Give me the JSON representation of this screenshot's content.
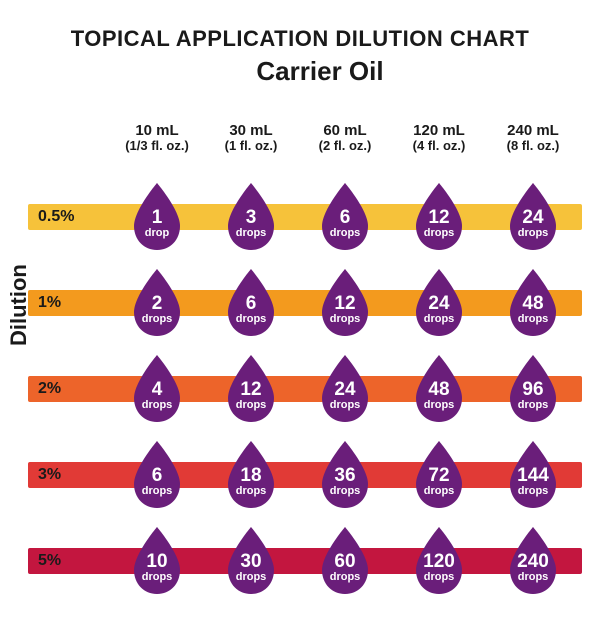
{
  "title": "TOPICAL APPLICATION DILUTION CHART",
  "title_fontsize": 22,
  "subtitle": "Carrier Oil",
  "subtitle_fontsize": 26,
  "y_axis_label": "Dilution",
  "y_axis_fontsize": 22,
  "text_color": "#1a1a1a",
  "drop_fill": "#6a1e7a",
  "drop_text_color": "#ffffff",
  "background_color": "#ffffff",
  "col_header_fontsize": 15,
  "col_subheader_fontsize": 13,
  "row_label_fontsize": 16,
  "drop_num_fontsize": 19,
  "drop_unit_fontsize": 11,
  "columns": [
    {
      "ml": "10 mL",
      "floz": "(1/3 fl. oz.)"
    },
    {
      "ml": "30 mL",
      "floz": "(1 fl. oz.)"
    },
    {
      "ml": "60 mL",
      "floz": "(2 fl. oz.)"
    },
    {
      "ml": "120 mL",
      "floz": "(4 fl. oz.)"
    },
    {
      "ml": "240 mL",
      "floz": "(8 fl. oz.)"
    }
  ],
  "rows": [
    {
      "label": "0.5%",
      "band_color": "#f6c23a",
      "drops": [
        {
          "n": "1",
          "u": "drop"
        },
        {
          "n": "3",
          "u": "drops"
        },
        {
          "n": "6",
          "u": "drops"
        },
        {
          "n": "12",
          "u": "drops"
        },
        {
          "n": "24",
          "u": "drops"
        }
      ]
    },
    {
      "label": "1%",
      "band_color": "#f39a1e",
      "drops": [
        {
          "n": "2",
          "u": "drops"
        },
        {
          "n": "6",
          "u": "drops"
        },
        {
          "n": "12",
          "u": "drops"
        },
        {
          "n": "24",
          "u": "drops"
        },
        {
          "n": "48",
          "u": "drops"
        }
      ]
    },
    {
      "label": "2%",
      "band_color": "#ed642a",
      "drops": [
        {
          "n": "4",
          "u": "drops"
        },
        {
          "n": "12",
          "u": "drops"
        },
        {
          "n": "24",
          "u": "drops"
        },
        {
          "n": "48",
          "u": "drops"
        },
        {
          "n": "96",
          "u": "drops"
        }
      ]
    },
    {
      "label": "3%",
      "band_color": "#e13a36",
      "drops": [
        {
          "n": "6",
          "u": "drops"
        },
        {
          "n": "18",
          "u": "drops"
        },
        {
          "n": "36",
          "u": "drops"
        },
        {
          "n": "72",
          "u": "drops"
        },
        {
          "n": "144",
          "u": "drops"
        }
      ]
    },
    {
      "label": "5%",
      "band_color": "#c3163f",
      "drops": [
        {
          "n": "10",
          "u": "drops"
        },
        {
          "n": "30",
          "u": "drops"
        },
        {
          "n": "60",
          "u": "drops"
        },
        {
          "n": "120",
          "u": "drops"
        },
        {
          "n": "240",
          "u": "drops"
        }
      ]
    }
  ]
}
